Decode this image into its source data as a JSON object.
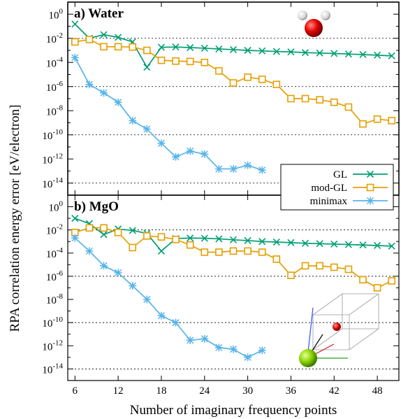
{
  "chart_data": {
    "type": "line",
    "xlabel": "Number of imaginary frequency  points",
    "ylabel": "RPA correlation energy error [eV/electron]",
    "xlim": [
      5,
      51
    ],
    "xticks": [
      6,
      12,
      18,
      24,
      30,
      36,
      42,
      48
    ],
    "y_scale": "log",
    "grid": "dotted horizontal lines at 10^-2, 10^-6, 10^-10, 10^-14",
    "legend": {
      "placement": "lower-right of top panel",
      "entries": [
        "GL",
        "mod-GL",
        "minimax"
      ]
    },
    "colors": {
      "GL": "#009e73",
      "mod-GL": "#e69f00",
      "minimax": "#56b4e9"
    },
    "panels": [
      {
        "title": "a) Water",
        "ylim": [
          1e-15,
          10.0
        ],
        "yticks": [
          {
            "base": "10",
            "exp": "0"
          },
          {
            "base": "10",
            "exp": "-2"
          },
          {
            "base": "10",
            "exp": "-4"
          },
          {
            "base": "10",
            "exp": "-6"
          },
          {
            "base": "10",
            "exp": "-8"
          },
          {
            "base": "10",
            "exp": "-10"
          },
          {
            "base": "10",
            "exp": "-12"
          },
          {
            "base": "10",
            "exp": "-14"
          }
        ],
        "series": [
          {
            "name": "GL",
            "marker": "x",
            "x": [
              6,
              8,
              10,
              12,
              14,
              16,
              18,
              20,
              22,
              24,
              26,
              28,
              30,
              32,
              34,
              36,
              38,
              40,
              42,
              44,
              46,
              48,
              50
            ],
            "y": [
              0.15,
              0.01,
              0.02,
              0.012,
              0.005,
              4e-05,
              0.0018,
              0.0019,
              0.0017,
              0.0015,
              0.0013,
              0.00115,
              0.001,
              0.0009,
              0.0008,
              0.00075,
              0.00065,
              0.0006,
              0.00055,
              0.0005,
              0.00045,
              0.0004,
              0.00035
            ]
          },
          {
            "name": "mod-GL",
            "marker": "square",
            "x": [
              6,
              8,
              10,
              12,
              14,
              16,
              18,
              20,
              22,
              24,
              26,
              28,
              30,
              32,
              34,
              36,
              38,
              40,
              42,
              44,
              46,
              48,
              50
            ],
            "y": [
              0.005,
              0.008,
              0.002,
              0.002,
              0.0019,
              0.001,
              0.00015,
              0.00013,
              0.00012,
              0.0001,
              2e-05,
              2e-06,
              6e-06,
              4e-06,
              1.5e-06,
              1e-07,
              1e-07,
              8e-08,
              5e-08,
              2e-08,
              8e-10,
              2e-09,
              1.5e-09
            ]
          },
          {
            "name": "minimax",
            "marker": "star",
            "x": [
              6,
              8,
              10,
              12,
              14,
              16,
              18,
              20,
              22,
              24,
              26,
              28,
              30,
              32
            ],
            "y": [
              0.00025,
              1.5e-06,
              3e-07,
              5e-08,
              1.5e-09,
              3e-10,
              2e-11,
              1.5e-12,
              4.5e-12,
              2.5e-12,
              1.5e-13,
              1.5e-13,
              3e-13,
              1.2e-13
            ]
          }
        ]
      },
      {
        "title": "b) MgO",
        "ylim": [
          1e-15,
          10.0
        ],
        "yticks": [
          {
            "base": "10",
            "exp": "0"
          },
          {
            "base": "10",
            "exp": "-2"
          },
          {
            "base": "10",
            "exp": "-4"
          },
          {
            "base": "10",
            "exp": "-6"
          },
          {
            "base": "10",
            "exp": "-8"
          },
          {
            "base": "10",
            "exp": "-10"
          },
          {
            "base": "10",
            "exp": "-12"
          },
          {
            "base": "10",
            "exp": "-14"
          }
        ],
        "series": [
          {
            "name": "GL",
            "marker": "x",
            "x": [
              6,
              8,
              10,
              12,
              14,
              16,
              18,
              20,
              22,
              24,
              26,
              28,
              30,
              32,
              34,
              36,
              38,
              40,
              42,
              44,
              46,
              48,
              50
            ],
            "y": [
              0.1,
              0.035,
              0.004,
              0.012,
              0.009,
              0.005,
              0.00015,
              0.0018,
              0.002,
              0.0019,
              0.0017,
              0.0014,
              0.0012,
              0.001,
              0.0009,
              0.0008,
              0.0007,
              0.00065,
              0.0006,
              0.00055,
              0.0005,
              0.00045,
              0.0004
            ]
          },
          {
            "name": "mod-GL",
            "marker": "square",
            "x": [
              6,
              8,
              10,
              12,
              14,
              16,
              18,
              20,
              22,
              24,
              26,
              28,
              30,
              32,
              34,
              36,
              38,
              40,
              42,
              44,
              46,
              48,
              50
            ],
            "y": [
              0.006,
              0.015,
              0.015,
              0.006,
              0.0003,
              0.003,
              0.0025,
              0.0015,
              0.0005,
              0.00012,
              0.00012,
              0.00015,
              0.00015,
              0.00012,
              3e-05,
              1.2e-06,
              8e-06,
              8e-06,
              6e-06,
              4e-06,
              5e-07,
              1e-07,
              4e-07
            ]
          },
          {
            "name": "minimax",
            "marker": "star",
            "x": [
              6,
              8,
              10,
              12,
              14,
              16,
              18,
              20,
              22,
              24,
              26,
              28,
              30,
              32
            ],
            "y": [
              0.002,
              0.00015,
              8e-06,
              2e-06,
              1.5e-07,
              1e-08,
              4e-10,
              1e-10,
              3e-12,
              4e-12,
              7e-13,
              5e-13,
              1e-13,
              4e-13
            ]
          }
        ]
      }
    ]
  }
}
